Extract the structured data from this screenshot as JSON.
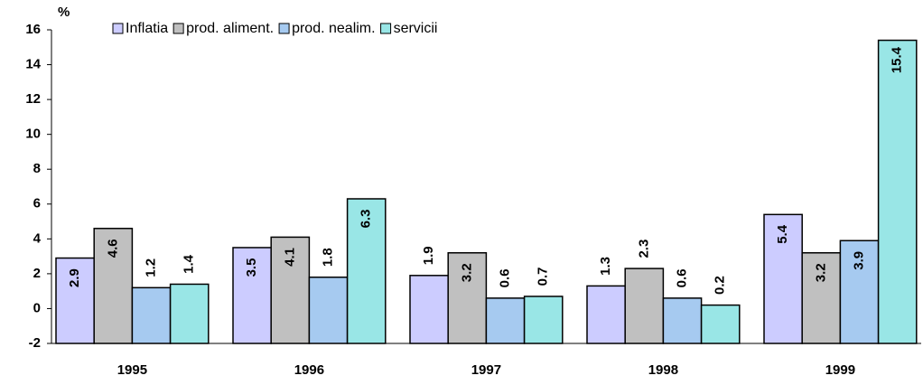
{
  "chart_data": {
    "type": "bar",
    "y_label": "%",
    "categories": [
      "1995",
      "1996",
      "1997",
      "1998",
      "1999"
    ],
    "series": [
      {
        "name": "Inflatia",
        "color": "#ccccff",
        "values": [
          2.9,
          3.5,
          1.9,
          1.3,
          5.4
        ]
      },
      {
        "name": "prod. aliment.",
        "color": "#c0c0c0",
        "values": [
          4.6,
          4.1,
          3.2,
          2.3,
          3.2
        ]
      },
      {
        "name": "prod. nealim.",
        "color": "#a6caf0",
        "values": [
          1.2,
          1.8,
          0.6,
          0.6,
          3.9
        ]
      },
      {
        "name": "servicii",
        "color": "#99e6e6",
        "values": [
          1.4,
          6.3,
          0.7,
          0.2,
          15.4
        ]
      }
    ],
    "ylim": [
      -2,
      16
    ],
    "yticks": [
      -2,
      0,
      2,
      4,
      6,
      8,
      10,
      12,
      14,
      16
    ],
    "legend": "top",
    "data_labels": true
  }
}
